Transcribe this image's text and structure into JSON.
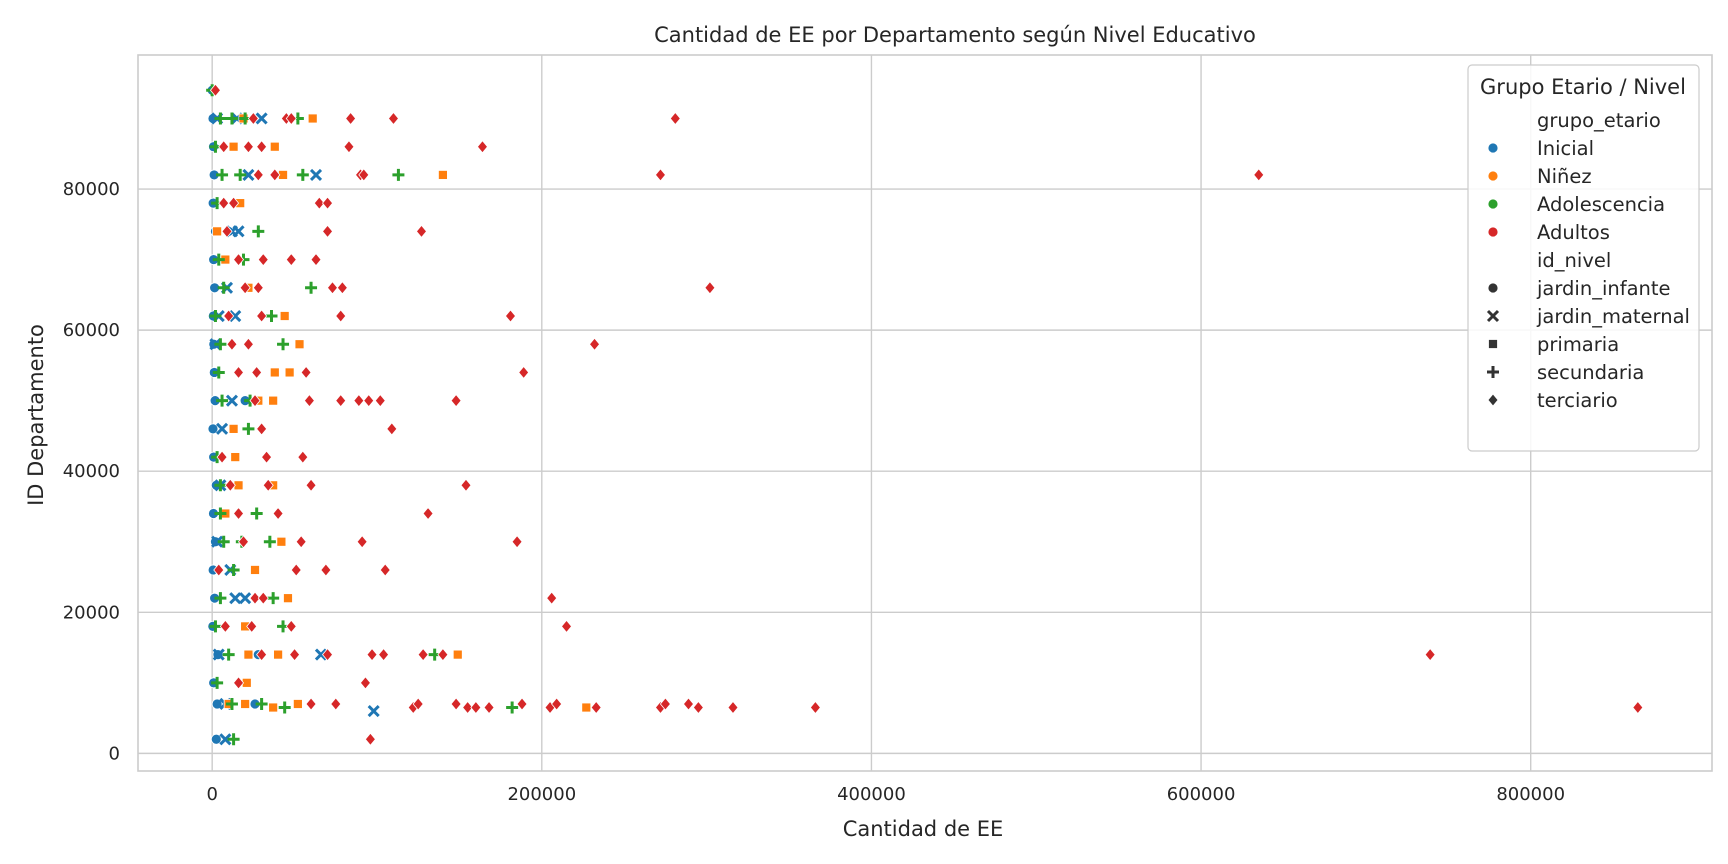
{
  "chart_data": {
    "type": "scatter",
    "title": "Cantidad de EE por Departamento según Nivel Educativo",
    "xlabel": "Cantidad de EE",
    "ylabel": "ID Departamento",
    "xlim": [
      -45000,
      910000
    ],
    "ylim": [
      -2500,
      99000
    ],
    "xticks": [
      0,
      200000,
      400000,
      600000,
      800000
    ],
    "yticks": [
      0,
      20000,
      40000,
      60000,
      80000
    ],
    "grid": true,
    "legend": {
      "title": "Grupo Etario / Nivel",
      "placement": "top-right",
      "hue_title": "grupo_etario",
      "style_title": "id_nivel",
      "hue_entries": [
        {
          "label": "Inicial",
          "color": "#1f77b4"
        },
        {
          "label": "Niñez",
          "color": "#ff7f0e"
        },
        {
          "label": "Adolescencia",
          "color": "#2ca02c"
        },
        {
          "label": "Adultos",
          "color": "#d62728"
        }
      ],
      "style_entries": [
        {
          "label": "jardin_infante",
          "marker": "circle"
        },
        {
          "label": "jardin_maternal",
          "marker": "x"
        },
        {
          "label": "primaria",
          "marker": "square"
        },
        {
          "label": "secundaria",
          "marker": "plus"
        },
        {
          "label": "terciario",
          "marker": "diamond"
        }
      ]
    },
    "series": [
      {
        "group": "Inicial",
        "nivel": "jardin_infante",
        "points": [
          [
            0,
            94000
          ],
          [
            500,
            90000
          ],
          [
            800,
            86000
          ],
          [
            1200,
            82000
          ],
          [
            600,
            78000
          ],
          [
            2000,
            74000
          ],
          [
            900,
            70000
          ],
          [
            1500,
            66000
          ],
          [
            700,
            62000
          ],
          [
            1000,
            58000
          ],
          [
            1300,
            54000
          ],
          [
            1800,
            50000
          ],
          [
            500,
            46000
          ],
          [
            900,
            42000
          ],
          [
            2500,
            38000
          ],
          [
            800,
            34000
          ],
          [
            2000,
            30000
          ],
          [
            600,
            26000
          ],
          [
            1500,
            22000
          ],
          [
            400,
            18000
          ],
          [
            3500,
            14000
          ],
          [
            900,
            10000
          ],
          [
            3000,
            7000
          ],
          [
            2500,
            2000
          ],
          [
            18000,
            90000
          ],
          [
            42000,
            82000
          ],
          [
            11000,
            62000
          ],
          [
            28000,
            14000
          ],
          [
            20000,
            50000
          ],
          [
            10000,
            74000
          ],
          [
            26000,
            7000
          ]
        ]
      },
      {
        "group": "Inicial",
        "nivel": "jardin_maternal",
        "points": [
          [
            3000,
            90000
          ],
          [
            15000,
            90000
          ],
          [
            30000,
            90000
          ],
          [
            22000,
            82000
          ],
          [
            63000,
            82000
          ],
          [
            12000,
            74000
          ],
          [
            16000,
            74000
          ],
          [
            9000,
            66000
          ],
          [
            14000,
            62000
          ],
          [
            2000,
            58000
          ],
          [
            12000,
            50000
          ],
          [
            6000,
            46000
          ],
          [
            5000,
            38000
          ],
          [
            14000,
            22000
          ],
          [
            20000,
            22000
          ],
          [
            4000,
            14000
          ],
          [
            66000,
            14000
          ],
          [
            8000,
            7000
          ],
          [
            98000,
            6000
          ],
          [
            8000,
            2000
          ],
          [
            3000,
            30000
          ],
          [
            11000,
            26000
          ],
          [
            4000,
            62000
          ]
        ]
      },
      {
        "group": "Niñez",
        "nivel": "primaria",
        "points": [
          [
            61000,
            90000
          ],
          [
            19000,
            90000
          ],
          [
            38000,
            86000
          ],
          [
            13000,
            86000
          ],
          [
            140000,
            82000
          ],
          [
            43000,
            82000
          ],
          [
            17000,
            78000
          ],
          [
            3000,
            74000
          ],
          [
            8000,
            70000
          ],
          [
            22000,
            66000
          ],
          [
            44000,
            62000
          ],
          [
            53000,
            58000
          ],
          [
            38000,
            54000
          ],
          [
            47000,
            54000
          ],
          [
            37000,
            50000
          ],
          [
            28000,
            50000
          ],
          [
            13000,
            46000
          ],
          [
            14000,
            42000
          ],
          [
            37000,
            38000
          ],
          [
            16000,
            38000
          ],
          [
            42000,
            30000
          ],
          [
            26000,
            26000
          ],
          [
            46000,
            22000
          ],
          [
            20000,
            18000
          ],
          [
            149000,
            14000
          ],
          [
            40000,
            14000
          ],
          [
            22000,
            14000
          ],
          [
            21000,
            10000
          ],
          [
            227000,
            6500
          ],
          [
            52000,
            7000
          ],
          [
            37000,
            6500
          ],
          [
            20000,
            7000
          ],
          [
            10000,
            7000
          ],
          [
            8000,
            34000
          ]
        ]
      },
      {
        "group": "Adolescencia",
        "nivel": "secundaria",
        "points": [
          [
            0,
            94000
          ],
          [
            5000,
            90000
          ],
          [
            12000,
            90000
          ],
          [
            20000,
            90000
          ],
          [
            52000,
            90000
          ],
          [
            2000,
            86000
          ],
          [
            6000,
            82000
          ],
          [
            17000,
            82000
          ],
          [
            113000,
            82000
          ],
          [
            55000,
            82000
          ],
          [
            3000,
            78000
          ],
          [
            28000,
            74000
          ],
          [
            4000,
            70000
          ],
          [
            19000,
            70000
          ],
          [
            60000,
            66000
          ],
          [
            7000,
            66000
          ],
          [
            2000,
            62000
          ],
          [
            36000,
            62000
          ],
          [
            5000,
            58000
          ],
          [
            43000,
            58000
          ],
          [
            4000,
            54000
          ],
          [
            6000,
            50000
          ],
          [
            23000,
            50000
          ],
          [
            22000,
            46000
          ],
          [
            3000,
            42000
          ],
          [
            5000,
            38000
          ],
          [
            27000,
            34000
          ],
          [
            5000,
            34000
          ],
          [
            7000,
            30000
          ],
          [
            35000,
            30000
          ],
          [
            13000,
            26000
          ],
          [
            5000,
            22000
          ],
          [
            37000,
            22000
          ],
          [
            2000,
            18000
          ],
          [
            43000,
            18000
          ],
          [
            10000,
            14000
          ],
          [
            135000,
            14000
          ],
          [
            3000,
            10000
          ],
          [
            182000,
            6500
          ],
          [
            44000,
            6500
          ],
          [
            30000,
            7000
          ],
          [
            12000,
            7000
          ],
          [
            13000,
            2000
          ],
          [
            18000,
            30000
          ]
        ]
      },
      {
        "group": "Adultos",
        "nivel": "terciario",
        "points": [
          [
            2000,
            94000
          ],
          [
            25000,
            90000
          ],
          [
            45000,
            90000
          ],
          [
            48000,
            90000
          ],
          [
            84000,
            90000
          ],
          [
            110000,
            90000
          ],
          [
            281000,
            90000
          ],
          [
            7000,
            86000
          ],
          [
            22000,
            86000
          ],
          [
            30000,
            86000
          ],
          [
            83000,
            86000
          ],
          [
            164000,
            86000
          ],
          [
            28000,
            82000
          ],
          [
            38000,
            82000
          ],
          [
            90000,
            82000
          ],
          [
            92000,
            82000
          ],
          [
            272000,
            82000
          ],
          [
            635000,
            82000
          ],
          [
            7000,
            78000
          ],
          [
            13000,
            78000
          ],
          [
            65000,
            78000
          ],
          [
            70000,
            78000
          ],
          [
            9000,
            74000
          ],
          [
            70000,
            74000
          ],
          [
            127000,
            74000
          ],
          [
            16000,
            70000
          ],
          [
            31000,
            70000
          ],
          [
            48000,
            70000
          ],
          [
            63000,
            70000
          ],
          [
            20000,
            66000
          ],
          [
            28000,
            66000
          ],
          [
            73000,
            66000
          ],
          [
            79000,
            66000
          ],
          [
            302000,
            66000
          ],
          [
            10000,
            62000
          ],
          [
            30000,
            62000
          ],
          [
            78000,
            62000
          ],
          [
            181000,
            62000
          ],
          [
            12000,
            58000
          ],
          [
            22000,
            58000
          ],
          [
            232000,
            58000
          ],
          [
            16000,
            54000
          ],
          [
            27000,
            54000
          ],
          [
            57000,
            54000
          ],
          [
            189000,
            54000
          ],
          [
            26000,
            50000
          ],
          [
            59000,
            50000
          ],
          [
            78000,
            50000
          ],
          [
            89000,
            50000
          ],
          [
            95000,
            50000
          ],
          [
            102000,
            50000
          ],
          [
            148000,
            50000
          ],
          [
            30000,
            46000
          ],
          [
            109000,
            46000
          ],
          [
            6000,
            42000
          ],
          [
            33000,
            42000
          ],
          [
            55000,
            42000
          ],
          [
            11000,
            38000
          ],
          [
            34000,
            38000
          ],
          [
            60000,
            38000
          ],
          [
            154000,
            38000
          ],
          [
            16000,
            34000
          ],
          [
            40000,
            34000
          ],
          [
            131000,
            34000
          ],
          [
            19000,
            30000
          ],
          [
            54000,
            30000
          ],
          [
            91000,
            30000
          ],
          [
            185000,
            30000
          ],
          [
            4000,
            26000
          ],
          [
            51000,
            26000
          ],
          [
            69000,
            26000
          ],
          [
            105000,
            26000
          ],
          [
            26000,
            22000
          ],
          [
            31000,
            22000
          ],
          [
            206000,
            22000
          ],
          [
            8000,
            18000
          ],
          [
            24000,
            18000
          ],
          [
            48000,
            18000
          ],
          [
            215000,
            18000
          ],
          [
            30000,
            14000
          ],
          [
            50000,
            14000
          ],
          [
            70000,
            14000
          ],
          [
            97000,
            14000
          ],
          [
            104000,
            14000
          ],
          [
            128000,
            14000
          ],
          [
            140000,
            14000
          ],
          [
            739000,
            14000
          ],
          [
            16000,
            10000
          ],
          [
            93000,
            10000
          ],
          [
            60000,
            7000
          ],
          [
            75000,
            7000
          ],
          [
            122000,
            6500
          ],
          [
            125000,
            7000
          ],
          [
            148000,
            7000
          ],
          [
            155000,
            6500
          ],
          [
            160000,
            6500
          ],
          [
            168000,
            6500
          ],
          [
            188000,
            7000
          ],
          [
            205000,
            6500
          ],
          [
            209000,
            7000
          ],
          [
            233000,
            6500
          ],
          [
            272000,
            6500
          ],
          [
            275000,
            7000
          ],
          [
            289000,
            7000
          ],
          [
            295000,
            6500
          ],
          [
            316000,
            6500
          ],
          [
            366000,
            6500
          ],
          [
            865000,
            6500
          ],
          [
            96000,
            2000
          ]
        ]
      }
    ]
  }
}
